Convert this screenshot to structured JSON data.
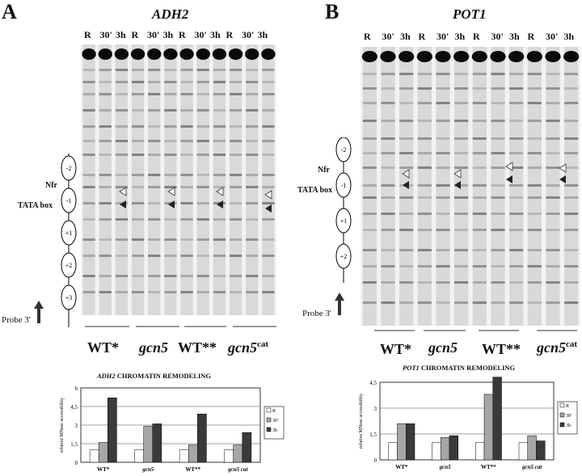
{
  "panels": [
    {
      "letter": "A",
      "gene": "ADH2",
      "lanes": [
        "R",
        "30'",
        "3h",
        "R",
        "30'",
        "3h",
        "R",
        "30'",
        "3h",
        "R",
        "30'",
        "3h"
      ],
      "strains": [
        {
          "name": "WT*",
          "italic": false,
          "sup": ""
        },
        {
          "name": "gcn5",
          "italic": true,
          "sup": ""
        },
        {
          "name": "WT**",
          "italic": false,
          "sup": ""
        },
        {
          "name": "gcn5",
          "italic": true,
          "sup": "cat"
        }
      ],
      "side": {
        "nfr": "Nfr",
        "tata": "TATA box",
        "probe": "Probe 3'",
        "nucleosomes": [
          "-2",
          "-1",
          "+1",
          "+2",
          "+3"
        ]
      },
      "chart": {
        "title_gene": "ADH2",
        "title_rest": " CHROMATIN REMODELING",
        "ylabel": "relative MNase accessibility"
      }
    },
    {
      "letter": "B",
      "gene": "POT1",
      "lanes": [
        "R",
        "30'",
        "3h",
        "R",
        "30'",
        "3h",
        "R",
        "30'",
        "3h",
        "R",
        "30'",
        "3h"
      ],
      "strains": [
        {
          "name": "WT*",
          "italic": false,
          "sup": ""
        },
        {
          "name": "gcn5",
          "italic": true,
          "sup": ""
        },
        {
          "name": "WT**",
          "italic": false,
          "sup": ""
        },
        {
          "name": "gcn5",
          "italic": true,
          "sup": "cat"
        }
      ],
      "side": {
        "nfr": "Nfr",
        "tata": "TATA box",
        "probe": "Probe 3'",
        "nucleosomes": [
          "-2",
          "-1",
          "+1",
          "+2"
        ]
      },
      "chart": {
        "title_gene": "POT1",
        "title_rest": " CHROMATIN REMODELING",
        "ylabel": "relative MNase accessibility"
      }
    }
  ],
  "chart_data": [
    {
      "type": "bar",
      "title": "ADH2 CHROMATIN REMODELING",
      "ylabel": "relative MNase accessibility",
      "categories": [
        "WT*",
        "gcn5",
        "WT**",
        "gcn5 cat"
      ],
      "series": [
        {
          "name": "R",
          "color": "#ffffff",
          "values": [
            1,
            1,
            1,
            1
          ]
        },
        {
          "name": "30'",
          "color": "#a6a6a6",
          "values": [
            1.6,
            2.9,
            1.4,
            1.4
          ]
        },
        {
          "name": "3h",
          "color": "#3a3a3a",
          "values": [
            5.2,
            3.1,
            3.9,
            2.4
          ]
        }
      ],
      "yticks": [
        "0",
        "1,5",
        "3",
        "4,5",
        "6"
      ],
      "ylim": [
        0,
        6
      ],
      "legend": "right",
      "grid": true
    },
    {
      "type": "bar",
      "title": "POT1 CHROMATIN REMODELING",
      "ylabel": "relative MNase accessibility",
      "categories": [
        "WT*",
        "gcn5",
        "WT**",
        "gcn5 cat"
      ],
      "series": [
        {
          "name": "R",
          "color": "#ffffff",
          "values": [
            1,
            1,
            1,
            1
          ]
        },
        {
          "name": "30'",
          "color": "#a6a6a6",
          "values": [
            2.1,
            1.3,
            3.8,
            1.4
          ]
        },
        {
          "name": "3h",
          "color": "#3a3a3a",
          "values": [
            2.1,
            1.4,
            4.8,
            1.1
          ]
        }
      ],
      "yticks": [
        "0",
        "1,5",
        "3",
        "4,5"
      ],
      "ylim": [
        0,
        4.5
      ],
      "legend": "right",
      "grid": true
    }
  ],
  "colors": {
    "blot_bg": "#f2f2f2",
    "band": "#555555",
    "chart_frame": "#000000"
  }
}
